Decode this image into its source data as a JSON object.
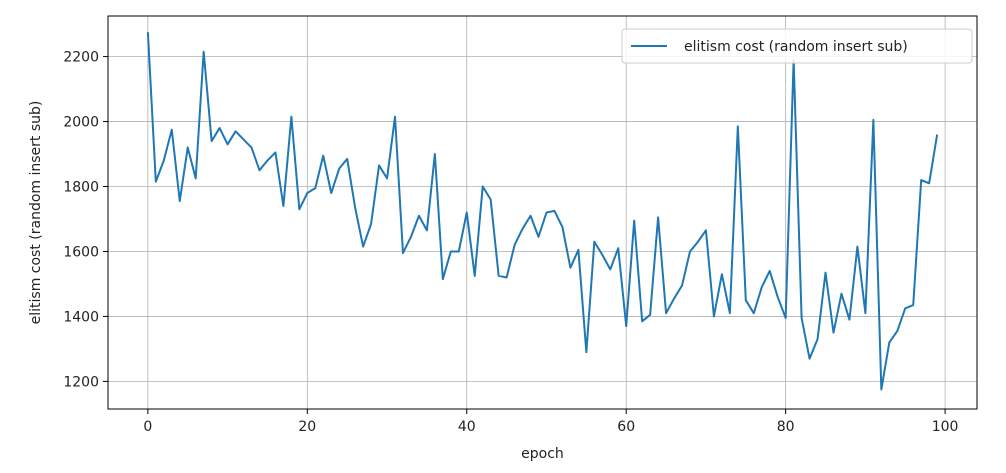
{
  "chart_data": {
    "type": "line",
    "title": "",
    "xlabel": "epoch",
    "ylabel": "elitism cost (random insert sub)",
    "xlim": [
      -5,
      104
    ],
    "ylim": [
      1115,
      2325
    ],
    "xticks": [
      0,
      20,
      40,
      60,
      80,
      100
    ],
    "yticks": [
      1200,
      1400,
      1600,
      1800,
      2000,
      2200
    ],
    "xtick_labels": [
      "0",
      "20",
      "40",
      "60",
      "80",
      "100"
    ],
    "ytick_labels": [
      "1200",
      "1400",
      "1600",
      "1800",
      "2000",
      "2200"
    ],
    "grid": true,
    "legend_position": "top-right",
    "series": [
      {
        "name": "elitism cost (random insert sub)",
        "color": "#1f77b4",
        "x": [
          0,
          1,
          2,
          3,
          4,
          5,
          6,
          7,
          8,
          9,
          10,
          11,
          12,
          13,
          14,
          15,
          16,
          17,
          18,
          19,
          20,
          21,
          22,
          23,
          24,
          25,
          26,
          27,
          28,
          29,
          30,
          31,
          32,
          33,
          34,
          35,
          36,
          37,
          38,
          39,
          40,
          41,
          42,
          43,
          44,
          45,
          46,
          47,
          48,
          49,
          50,
          51,
          52,
          53,
          54,
          55,
          56,
          57,
          58,
          59,
          60,
          61,
          62,
          63,
          64,
          65,
          66,
          67,
          68,
          69,
          70,
          71,
          72,
          73,
          74,
          75,
          76,
          77,
          78,
          79,
          80,
          81,
          82,
          83,
          84,
          85,
          86,
          87,
          88,
          89,
          90,
          91,
          92,
          93,
          94,
          95,
          96,
          97,
          98,
          99
        ],
        "values": [
          2275,
          1815,
          1880,
          1975,
          1755,
          1920,
          1825,
          2215,
          1940,
          1980,
          1930,
          1970,
          1945,
          1920,
          1850,
          1880,
          1905,
          1740,
          2015,
          1730,
          1780,
          1795,
          1895,
          1780,
          1855,
          1885,
          1735,
          1615,
          1685,
          1865,
          1825,
          2015,
          1595,
          1645,
          1710,
          1665,
          1900,
          1515,
          1600,
          1600,
          1720,
          1525,
          1800,
          1760,
          1525,
          1520,
          1620,
          1670,
          1710,
          1645,
          1720,
          1725,
          1675,
          1550,
          1605,
          1290,
          1630,
          1590,
          1545,
          1610,
          1370,
          1695,
          1385,
          1405,
          1705,
          1410,
          1455,
          1495,
          1600,
          1630,
          1665,
          1400,
          1530,
          1410,
          1985,
          1450,
          1410,
          1490,
          1540,
          1460,
          1395,
          2190,
          1395,
          1270,
          1330,
          1535,
          1350,
          1470,
          1390,
          1615,
          1410,
          2005,
          1175,
          1320,
          1355,
          1425,
          1435,
          1820,
          1810,
          1960
        ]
      }
    ]
  }
}
